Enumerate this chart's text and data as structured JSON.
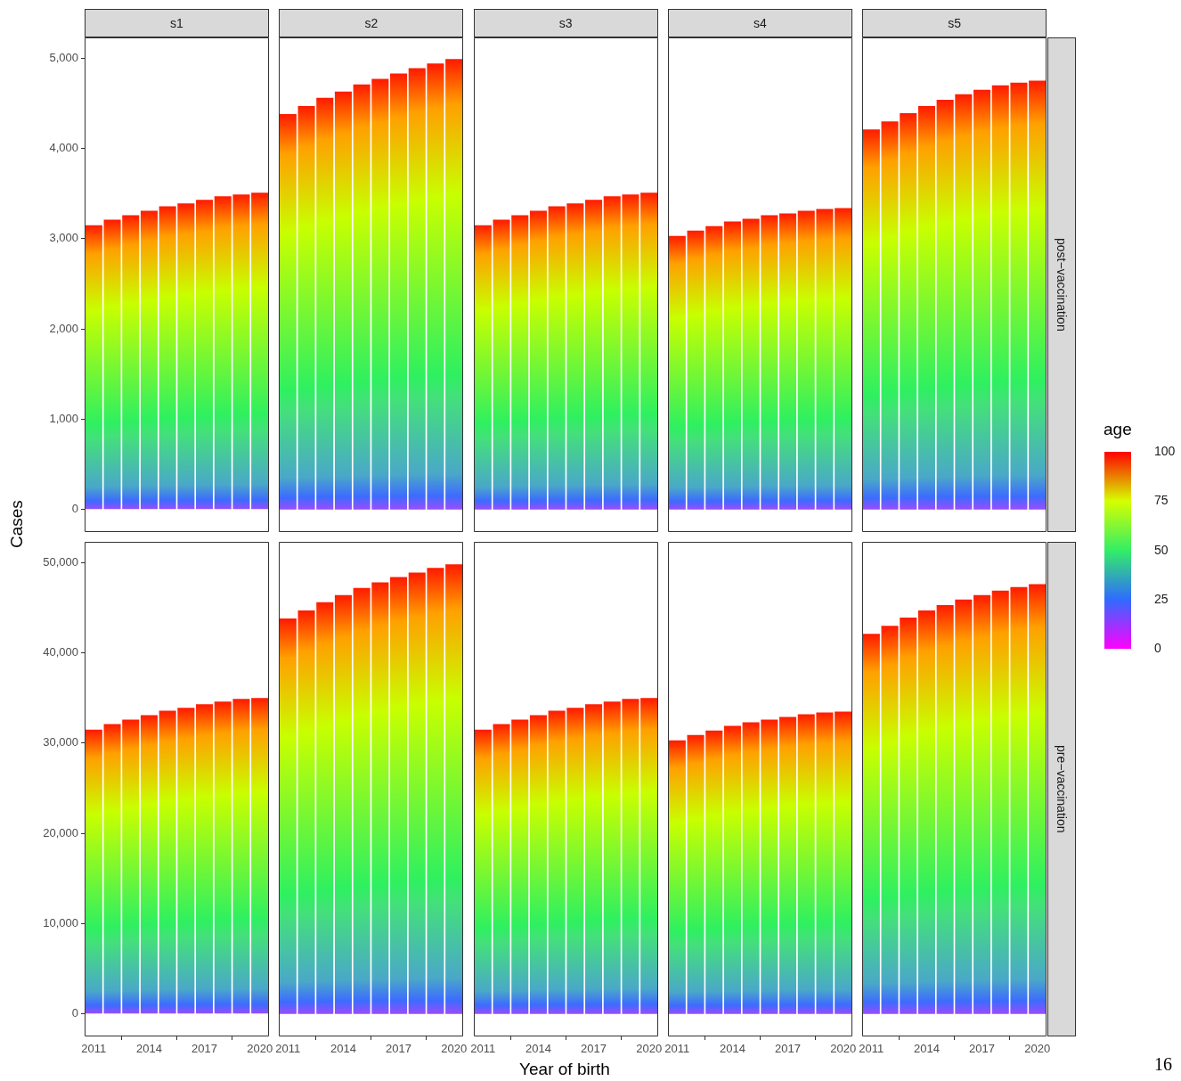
{
  "chart_data": [
    {
      "type": "bar",
      "title": "s1",
      "ylabel": "Cases",
      "clabel": "age",
      "clim": [
        0,
        100
      ],
      "cticks": [
        0,
        25,
        50,
        75,
        100
      ],
      "x": [
        2011,
        2012,
        2013,
        2014,
        2015,
        2016,
        2017,
        2018,
        2019,
        2020
      ],
      "values": [
        3150,
        3210,
        3260,
        3310,
        3360,
        3390,
        3430,
        3470,
        3490,
        3510
      ],
      "xlim": [
        2010.5,
        2020.5
      ],
      "ylim": [
        -250,
        5230
      ],
      "yticks": [
        0,
        {
          "value": 1000,
          "label": "1,000"
        },
        {
          "value": 2000,
          "label": "2,000"
        },
        {
          "value": 3000,
          "label": "3,000"
        },
        {
          "value": 4000,
          "label": "4,000"
        },
        {
          "value": 5000,
          "label": "5,000"
        }
      ],
      "tick_labels": "y"
    },
    {
      "type": "bar",
      "title": "s2",
      "x": [
        2011,
        2012,
        2013,
        2014,
        2015,
        2016,
        2017,
        2018,
        2019,
        2020
      ],
      "values": [
        4380,
        4470,
        4560,
        4630,
        4710,
        4770,
        4830,
        4890,
        4940,
        4990
      ],
      "xlim": [
        2010.5,
        2020.5
      ],
      "ylim": [
        -250,
        5230
      ],
      "tick_labels": false
    },
    {
      "type": "bar",
      "title": "s3",
      "x": [
        2011,
        2012,
        2013,
        2014,
        2015,
        2016,
        2017,
        2018,
        2019,
        2020
      ],
      "values": [
        3150,
        3210,
        3260,
        3310,
        3360,
        3390,
        3430,
        3470,
        3490,
        3510
      ],
      "xlim": [
        2010.5,
        2020.5
      ],
      "ylim": [
        -250,
        5230
      ],
      "tick_labels": false
    },
    {
      "type": "bar",
      "title": "s4",
      "x": [
        2011,
        2012,
        2013,
        2014,
        2015,
        2016,
        2017,
        2018,
        2019,
        2020
      ],
      "values": [
        3030,
        3090,
        3140,
        3190,
        3220,
        3260,
        3280,
        3310,
        3330,
        3340
      ],
      "xlim": [
        2010.5,
        2020.5
      ],
      "ylim": [
        -250,
        5230
      ],
      "tick_labels": false
    },
    {
      "type": "bar",
      "title": "s5",
      "y2label": "post−vaccination",
      "x": [
        2011,
        2012,
        2013,
        2014,
        2015,
        2016,
        2017,
        2018,
        2019,
        2020
      ],
      "values": [
        4210,
        4300,
        4390,
        4470,
        4540,
        4600,
        4650,
        4700,
        4730,
        4750
      ],
      "xlim": [
        2010.5,
        2020.5
      ],
      "ylim": [
        -250,
        5230
      ],
      "tick_labels": false
    },
    {
      "type": "bar",
      "x": [
        2011,
        2012,
        2013,
        2014,
        2015,
        2016,
        2017,
        2018,
        2019,
        2020
      ],
      "values": [
        31500,
        32100,
        32600,
        33100,
        33600,
        33900,
        34300,
        34600,
        34900,
        35000
      ],
      "xlim": [
        2010.5,
        2020.5
      ],
      "xticks": [
        2011,
        2014,
        2017,
        2020
      ],
      "ylim": [
        -2500,
        52300
      ],
      "yticks": [
        0,
        {
          "value": 10000,
          "label": "10,000"
        },
        {
          "value": 20000,
          "label": "20,000"
        },
        {
          "value": 30000,
          "label": "30,000"
        },
        {
          "value": 40000,
          "label": "40,000"
        },
        {
          "value": 50000,
          "label": "50,000"
        }
      ]
    },
    {
      "type": "bar",
      "x": [
        2011,
        2012,
        2013,
        2014,
        2015,
        2016,
        2017,
        2018,
        2019,
        2020
      ],
      "values": [
        43800,
        44700,
        45600,
        46400,
        47200,
        47800,
        48400,
        48900,
        49400,
        49800
      ],
      "xlim": [
        2010.5,
        2020.5
      ],
      "xticks": [
        2011,
        2014,
        2017,
        2020
      ],
      "ylim": [
        -2500,
        52300
      ],
      "tick_labels": "x"
    },
    {
      "type": "bar",
      "xlabel": "Year of birth",
      "x": [
        2011,
        2012,
        2013,
        2014,
        2015,
        2016,
        2017,
        2018,
        2019,
        2020
      ],
      "values": [
        31500,
        32100,
        32600,
        33100,
        33600,
        33900,
        34300,
        34600,
        34900,
        35000
      ],
      "xlim": [
        2010.5,
        2020.5
      ],
      "xticks": [
        2011,
        2014,
        2017,
        2020
      ],
      "ylim": [
        -2500,
        52300
      ],
      "tick_labels": "x"
    },
    {
      "type": "bar",
      "x": [
        2011,
        2012,
        2013,
        2014,
        2015,
        2016,
        2017,
        2018,
        2019,
        2020
      ],
      "values": [
        30300,
        30900,
        31400,
        31900,
        32300,
        32600,
        32900,
        33200,
        33400,
        33500
      ],
      "xlim": [
        2010.5,
        2020.5
      ],
      "xticks": [
        2011,
        2014,
        2017,
        2020
      ],
      "ylim": [
        -2500,
        52300
      ],
      "tick_labels": "x"
    },
    {
      "type": "bar",
      "y2label": "pre−vaccination",
      "annotations": [
        "16"
      ],
      "x": [
        2011,
        2012,
        2013,
        2014,
        2015,
        2016,
        2017,
        2018,
        2019,
        2020
      ],
      "values": [
        42100,
        43000,
        43900,
        44700,
        45300,
        45900,
        46400,
        46900,
        47300,
        47600
      ],
      "xlim": [
        2010.5,
        2020.5
      ],
      "xticks": [
        2011,
        2014,
        2017,
        2020
      ],
      "ylim": [
        -2500,
        52300
      ],
      "tick_labels": "x"
    }
  ]
}
